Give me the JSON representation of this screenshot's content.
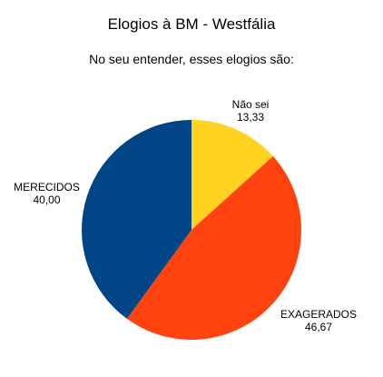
{
  "chart_data": {
    "type": "pie",
    "title": "Elogios à BM - Westfália",
    "subtitle": "No seu entender, esses elogios são:",
    "slices": [
      {
        "label": "Não sei",
        "value": 13.33,
        "value_text": "13,33",
        "color": "#FFD320"
      },
      {
        "label": "EXAGERADOS",
        "value": 46.67,
        "value_text": "46,67",
        "color": "#FF420E"
      },
      {
        "label": "MERECIDOS",
        "value": 40.0,
        "value_text": "40,00",
        "color": "#004586"
      }
    ],
    "legend": "none"
  }
}
